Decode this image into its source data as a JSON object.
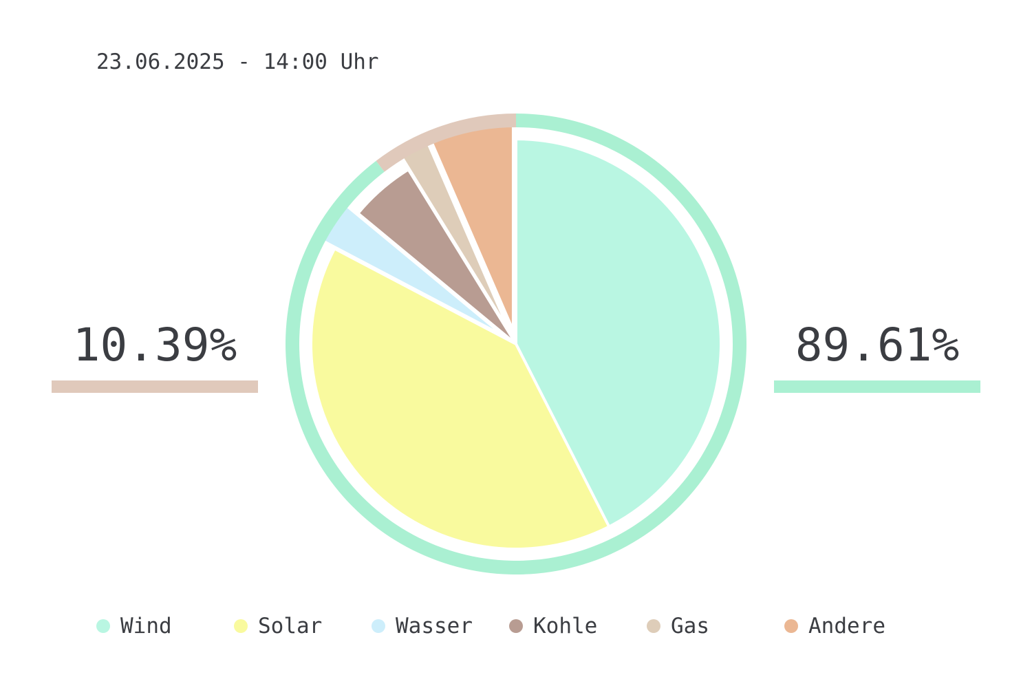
{
  "timestamp": "23.06.2025 - 14:00 Uhr",
  "summary": {
    "left": {
      "value": "10.39%",
      "color": "#e0c9bb"
    },
    "right": {
      "value": "89.61%",
      "color": "#aaf0d2"
    }
  },
  "chart_data": {
    "type": "pie",
    "title": "",
    "categories": [
      "Wind",
      "Solar",
      "Wasser",
      "Kohle",
      "Gas",
      "Andere"
    ],
    "values": [
      42.5,
      40.2,
      3.3,
      5.2,
      2.3,
      6.5
    ],
    "colors": [
      "#b9f6e2",
      "#f9fa9e",
      "#cdeefb",
      "#b89c92",
      "#decdb9",
      "#ebb793"
    ],
    "exploded": [
      "Wasser",
      "Gas",
      "Andere"
    ],
    "outer_ring": [
      {
        "label": "10.39%",
        "color": "#e0c9bb",
        "value": 10.39
      },
      {
        "label": "89.61%",
        "color": "#aaf0d2",
        "value": 89.61
      }
    ],
    "legend": "bottom"
  }
}
